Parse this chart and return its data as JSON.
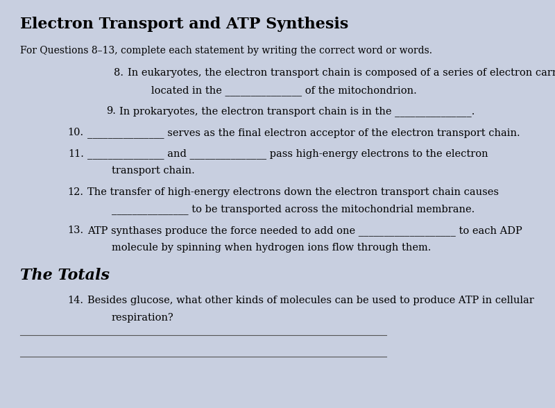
{
  "title": "Electron Transport and ATP Synthesis",
  "intro": "For Questions 8–13, complete each statement by writing the correct word or words.",
  "questions": [
    {
      "number": "8.",
      "indent": 0.32,
      "lines": [
        "In eukaryotes, the electron transport chain is composed of a series of electron carriers",
        "located in the _______________ of the mitochondrion."
      ]
    },
    {
      "number": "9.",
      "indent": 0.3,
      "lines": [
        "In prokaryotes, the electron transport chain is in the _______________."
      ]
    },
    {
      "number": "10.",
      "indent": 0.22,
      "lines": [
        "_______________ serves as the final electron acceptor of the electron transport chain."
      ]
    },
    {
      "number": "11.",
      "indent": 0.22,
      "lines": [
        "_______________ and _______________ pass high-energy electrons to the electron",
        "transport chain."
      ]
    },
    {
      "number": "12.",
      "indent": 0.22,
      "lines": [
        "The transfer of high-energy electrons down the electron transport chain causes",
        "_______________ to be transported across the mitochondrial membrane."
      ]
    },
    {
      "number": "13.",
      "indent": 0.22,
      "lines": [
        "ATP synthases produce the force needed to add one ___________________ to each ADP",
        "molecule by spinning when hydrogen ions flow through them."
      ]
    }
  ],
  "section2_title": "The Totals",
  "question14": {
    "number": "14.",
    "lines": [
      "Besides glucose, what other kinds of molecules can be used to produce ATP in cellular",
      "respiration?"
    ]
  },
  "answer_lines": 2,
  "bg_color": "#c8cfe0",
  "title_fontsize": 16,
  "body_fontsize": 10.5,
  "section_fontsize": 16
}
